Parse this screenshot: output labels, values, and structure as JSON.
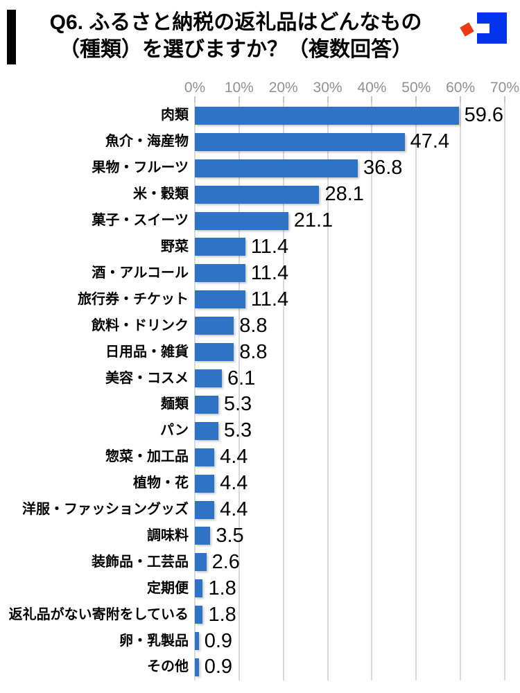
{
  "header": {
    "title_line1": "Q6. ふるさと納税の返礼品はどんなもの",
    "title_line2": "（種類）を選びますか？（複数回答）",
    "accent_bar_color": "#000000",
    "logo": {
      "name": "survey-brand-logo",
      "blue_square_color": "#0433f0",
      "red_diamond_color": "#ee3a14"
    }
  },
  "chart_data": {
    "type": "bar",
    "orientation": "horizontal",
    "title": "Q6. ふるさと納税の返礼品はどんなもの（種類）を選びますか？（複数回答）",
    "categories": [
      "肉類",
      "魚介・海産物",
      "果物・フルーツ",
      "米・穀類",
      "菓子・スイーツ",
      "野菜",
      "酒・アルコール",
      "旅行券・チケット",
      "飲料・ドリンク",
      "日用品・雑貨",
      "美容・コスメ",
      "麺類",
      "パン",
      "惣菜・加工品",
      "植物・花",
      "洋服・ファッショングッズ",
      "調味料",
      "装飾品・工芸品",
      "定期便",
      "返礼品がない寄附をしている",
      "卵・乳製品",
      "その他"
    ],
    "values": [
      59.6,
      47.4,
      36.8,
      28.1,
      21.1,
      11.4,
      11.4,
      11.4,
      8.8,
      8.8,
      6.1,
      5.3,
      5.3,
      4.4,
      4.4,
      4.4,
      3.5,
      2.6,
      1.8,
      1.8,
      0.9,
      0.9
    ],
    "value_labels": [
      "59.6",
      "47.4",
      "36.8",
      "28.1",
      "21.1",
      "11.4",
      "11.4",
      "11.4",
      "8.8",
      "8.8",
      "6.1",
      "5.3",
      "5.3",
      "4.4",
      "4.4",
      "4.4",
      "3.5",
      "2.6",
      "1.8",
      "1.8",
      "0.9",
      "0.9"
    ],
    "xlabel": "",
    "ylabel": "",
    "axis": {
      "min": 0,
      "max": 70,
      "ticks": [
        "0%",
        "10%",
        "20%",
        "30%",
        "40%",
        "50%",
        "60%",
        "70%"
      ]
    },
    "unit": "%",
    "bar_color": "#2e73c4",
    "gridline_color": "#d9d9d9",
    "axis_label_color": "#919191",
    "grid": true,
    "legend": false
  }
}
